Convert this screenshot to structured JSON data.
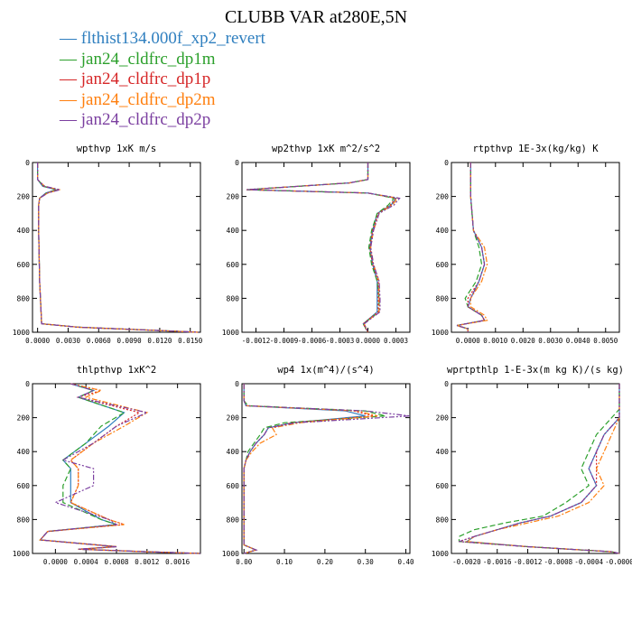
{
  "title": "CLUBB VAR at280E,5N",
  "legend": [
    {
      "label": "flthist134.000f_xp2_revert",
      "color": "#2f7fbf",
      "dash": ""
    },
    {
      "label": "jan24_cldfrc_dp1m",
      "color": "#2ca02c",
      "dash": "6,3"
    },
    {
      "label": "jan24_cldfrc_dp1p",
      "color": "#d62728",
      "dash": "2,2"
    },
    {
      "label": "jan24_cldfrc_dp2m",
      "color": "#ff7f0e",
      "dash": "6,2,2,2"
    },
    {
      "label": "jan24_cldfrc_dp2p",
      "color": "#7b3fa0",
      "dash": "6,2,2,2,2,2"
    }
  ],
  "chart_data": [
    {
      "type": "line",
      "title": "wpthvp  1xK m/s",
      "ylim": [
        1000,
        0
      ],
      "xlim": [
        -0.0005,
        0.016
      ],
      "xticks": [
        "0.0000",
        "0.0030",
        "0.0060",
        "0.0090",
        "0.0120",
        "0.0150"
      ],
      "xtick_values": [
        0,
        0.003,
        0.006,
        0.009,
        0.012,
        0.015
      ],
      "yticks": [
        "0",
        "200",
        "400",
        "600",
        "800",
        "1000"
      ],
      "ytick_values": [
        0,
        200,
        400,
        600,
        800,
        1000
      ],
      "levels": [
        0,
        100,
        140,
        160,
        180,
        210,
        250,
        400,
        700,
        950,
        970,
        990,
        1000
      ],
      "series": [
        {
          "values": [
            0,
            0,
            0.0005,
            0.0018,
            0.0008,
            0.0002,
            0.0001,
            0.0001,
            0.0002,
            0.0004,
            0.004,
            0.012,
            0.0158
          ]
        },
        {
          "values": [
            0,
            0,
            0.0006,
            0.0019,
            0.0009,
            0.0002,
            0.0001,
            0.0001,
            0.0002,
            0.0004,
            0.004,
            0.012,
            0.0158
          ]
        },
        {
          "values": [
            0,
            0,
            0.0006,
            0.002,
            0.0009,
            0.0002,
            0.0001,
            0.0001,
            0.0002,
            0.0004,
            0.004,
            0.012,
            0.0158
          ]
        },
        {
          "values": [
            0,
            0,
            0.0007,
            0.0021,
            0.001,
            0.0002,
            0.0001,
            0.0001,
            0.0002,
            0.0004,
            0.004,
            0.012,
            0.0158
          ]
        },
        {
          "values": [
            0,
            0,
            0.0007,
            0.0022,
            0.001,
            0.0002,
            0.0001,
            0.0001,
            0.0002,
            0.0004,
            0.004,
            0.012,
            0.0158
          ]
        }
      ]
    },
    {
      "type": "line",
      "title": "wp2thvp  1xK m^2/s^2",
      "ylim": [
        1000,
        0
      ],
      "xlim": [
        -0.00135,
        0.00045
      ],
      "xticks": [
        "-0.0012",
        "-0.0009",
        "-0.0006",
        "-0.0003",
        "0.0000",
        "0.0003"
      ],
      "xtick_values": [
        -0.0012,
        -0.0009,
        -0.0006,
        -0.0003,
        0,
        0.0003
      ],
      "yticks": [
        "0",
        "200",
        "400",
        "600",
        "800",
        "1000"
      ],
      "ytick_values": [
        0,
        200,
        400,
        600,
        800,
        1000
      ],
      "levels": [
        0,
        100,
        120,
        160,
        180,
        210,
        250,
        300,
        400,
        500,
        600,
        700,
        800,
        880,
        950,
        1000
      ],
      "series": [
        {
          "values": [
            0,
            0,
            -0.0002,
            -0.0013,
            0,
            0.0003,
            0.00025,
            0.0001,
            5e-05,
            2e-05,
            5e-05,
            0.0001,
            0.0001,
            0.0001,
            -5e-05,
            0
          ]
        },
        {
          "values": [
            0,
            0,
            -0.0002,
            -0.0013,
            0,
            0.00028,
            0.00022,
            0.0001,
            4e-05,
            1e-05,
            4e-05,
            0.0001,
            0.00012,
            0.00012,
            -5e-05,
            0
          ]
        },
        {
          "values": [
            0,
            0,
            -0.0002,
            -0.0013,
            0,
            0.0003,
            0.00024,
            0.00011,
            5e-05,
            2e-05,
            5e-05,
            0.00011,
            0.00011,
            0.00011,
            -5e-05,
            0
          ]
        },
        {
          "values": [
            0,
            0,
            -0.0002,
            -0.0013,
            0,
            0.00032,
            0.00026,
            0.00012,
            6e-05,
            3e-05,
            6e-05,
            0.00012,
            0.00012,
            0.00012,
            -4e-05,
            0
          ]
        },
        {
          "values": [
            0,
            0,
            -0.0002,
            -0.0013,
            0,
            0.00034,
            0.00028,
            0.00012,
            6e-05,
            3e-05,
            6e-05,
            0.00012,
            0.00013,
            0.00013,
            -4e-05,
            0
          ]
        }
      ]
    },
    {
      "type": "line",
      "title": "rtpthvp  1E-3x(kg/kg) K",
      "ylim": [
        1000,
        0
      ],
      "xlim": [
        -0.0006,
        0.0055
      ],
      "xticks": [
        "0.0000",
        "0.0010",
        "0.0020",
        "0.0030",
        "0.0040",
        "0.0050"
      ],
      "xtick_values": [
        0,
        0.001,
        0.002,
        0.003,
        0.004,
        0.005
      ],
      "yticks": [
        "0",
        "200",
        "400",
        "600",
        "800",
        "1000"
      ],
      "ytick_values": [
        0,
        200,
        400,
        600,
        800,
        1000
      ],
      "levels": [
        0,
        200,
        400,
        500,
        600,
        700,
        800,
        850,
        900,
        930,
        960,
        980,
        1000
      ],
      "series": [
        {
          "values": [
            0.0001,
            0.0001,
            0.0002,
            0.0005,
            0.0006,
            0.0004,
            0.0001,
            0,
            0.0005,
            0.0006,
            -0.0004,
            0,
            0
          ]
        },
        {
          "values": [
            0.0001,
            0.0001,
            0.0002,
            0.0004,
            0.0005,
            0.0003,
            -0.0001,
            0,
            0.0005,
            0.0006,
            -0.0004,
            0,
            0
          ]
        },
        {
          "values": [
            0.0001,
            0.0001,
            0.0002,
            0.0005,
            0.0006,
            0.0004,
            0,
            0,
            0.0005,
            0.0006,
            -0.0004,
            0,
            0
          ]
        },
        {
          "values": [
            0.0001,
            0.0001,
            0.0002,
            0.0006,
            0.0007,
            0.0005,
            0.0001,
            0.0001,
            0.0006,
            0.0007,
            -0.0004,
            0,
            0
          ]
        },
        {
          "values": [
            0.0001,
            0.0001,
            0.0002,
            0.0005,
            0.0006,
            0.0004,
            0.0001,
            0,
            0.0005,
            0.0006,
            -0.0004,
            0,
            0
          ]
        }
      ]
    },
    {
      "type": "line",
      "title": "thlpthvp  1xK^2",
      "ylim": [
        1000,
        0
      ],
      "xlim": [
        -0.0003,
        0.0019
      ],
      "xticks": [
        "0.0000",
        "0.0004",
        "0.0008",
        "0.0012",
        "0.0016"
      ],
      "xtick_values": [
        0,
        0.0004,
        0.0008,
        0.0012,
        0.0016
      ],
      "yticks": [
        "0",
        "200",
        "400",
        "600",
        "800",
        "1000"
      ],
      "ytick_values": [
        0,
        200,
        400,
        600,
        800,
        1000
      ],
      "levels": [
        0,
        40,
        80,
        170,
        250,
        350,
        450,
        500,
        600,
        700,
        800,
        830,
        870,
        920,
        960,
        975,
        990,
        1000
      ],
      "series": [
        {
          "values": [
            0.0002,
            0.0005,
            0.0003,
            0.0009,
            0.0007,
            0.0004,
            0.0001,
            0.0002,
            0.0002,
            0.0002,
            0.0006,
            0.0008,
            -0.0001,
            -0.0002,
            0.0008,
            0.0003,
            0.0012,
            0.0019
          ]
        },
        {
          "values": [
            0.0002,
            0.0005,
            0.0003,
            0.0009,
            0.0006,
            0.0004,
            0.0001,
            0.0002,
            0.0001,
            0.0001,
            0.0006,
            0.0008,
            -0.0001,
            -0.0002,
            0.0008,
            0.0003,
            0.0012,
            0.0019
          ]
        },
        {
          "values": [
            0.0002,
            0.0006,
            0.0003,
            0.0011,
            0.0008,
            0.0005,
            0.0002,
            0.0003,
            0.0003,
            0.0002,
            0.0007,
            0.0009,
            -0.0001,
            -0.0002,
            0.0008,
            0.0003,
            0.0012,
            0.0019
          ]
        },
        {
          "values": [
            0.0002,
            0.0006,
            0.0004,
            0.0012,
            0.0009,
            0.0005,
            0.0002,
            0.0003,
            0.0003,
            0.0002,
            0.0007,
            0.0009,
            -0.0001,
            -0.0002,
            0.0008,
            0.0003,
            0.0012,
            0.0019
          ]
        },
        {
          "values": [
            0.0002,
            0.0005,
            0.0003,
            0.0012,
            0.0008,
            0.0005,
            0.0001,
            0.0005,
            0.0005,
            0,
            0.0007,
            0.0008,
            -0.0001,
            -0.0002,
            0.0008,
            0.0003,
            0.0012,
            0.0019
          ]
        }
      ]
    },
    {
      "type": "line",
      "title": "wp4  1x(m^4)/(s^4)",
      "ylim": [
        1000,
        0
      ],
      "xlim": [
        -0.005,
        0.41
      ],
      "xticks": [
        "0.00",
        "0.10",
        "0.20",
        "0.30",
        "0.40"
      ],
      "xtick_values": [
        0,
        0.1,
        0.2,
        0.3,
        0.4
      ],
      "yticks": [
        "0",
        "200",
        "400",
        "600",
        "800",
        "1000"
      ],
      "ytick_values": [
        0,
        200,
        400,
        600,
        800,
        1000
      ],
      "levels": [
        0,
        100,
        130,
        160,
        190,
        230,
        260,
        300,
        350,
        400,
        450,
        500,
        950,
        980,
        1000
      ],
      "series": [
        {
          "values": [
            0,
            0,
            0.005,
            0.25,
            0.3,
            0.12,
            0.06,
            0.05,
            0.03,
            0.015,
            0.005,
            0,
            0,
            0.03,
            0
          ]
        },
        {
          "values": [
            0,
            0,
            0.01,
            0.3,
            0.35,
            0.1,
            0.05,
            0.04,
            0.025,
            0.01,
            0.005,
            0,
            0,
            0.03,
            0
          ]
        },
        {
          "values": [
            0,
            0,
            0.006,
            0.27,
            0.32,
            0.12,
            0.06,
            0.05,
            0.03,
            0.015,
            0.005,
            0,
            0,
            0.03,
            0
          ]
        },
        {
          "values": [
            0,
            0,
            0.006,
            0.28,
            0.33,
            0.14,
            0.07,
            0.08,
            0.04,
            0.02,
            0.005,
            0,
            0,
            0.03,
            0
          ]
        },
        {
          "values": [
            0,
            0,
            0.005,
            0.3,
            0.41,
            0.13,
            0.06,
            0.05,
            0.03,
            0.015,
            0.005,
            0,
            0,
            0.03,
            0
          ]
        }
      ]
    },
    {
      "type": "line",
      "title": "wprtpthlp  1-E-3x(m kg K)/(s kg)",
      "ylim": [
        1000,
        0
      ],
      "xlim": [
        -0.0022,
        0
      ],
      "xticks": [
        "-0.0020",
        "-0.0016",
        "-0.0012",
        "-0.0008",
        "-0.0004",
        "-0.0000"
      ],
      "xtick_values": [
        -0.002,
        -0.0016,
        -0.0012,
        -0.0008,
        -0.0004,
        0
      ],
      "yticks": [
        "0",
        "200",
        "400",
        "600",
        "800",
        "1000"
      ],
      "ytick_values": [
        0,
        200,
        400,
        600,
        800,
        1000
      ],
      "levels": [
        0,
        150,
        200,
        300,
        400,
        500,
        600,
        700,
        780,
        820,
        860,
        900,
        930,
        960,
        990,
        1000
      ],
      "series": [
        {
          "values": [
            0,
            0,
            0,
            -0.0002,
            -0.0003,
            -0.0004,
            -0.0003,
            -0.0005,
            -0.0009,
            -0.0013,
            -0.0016,
            -0.0019,
            -0.002,
            -0.0012,
            -0.0001,
            0
          ]
        },
        {
          "values": [
            0,
            0,
            -0.0001,
            -0.0003,
            -0.0004,
            -0.0005,
            -0.0004,
            -0.0007,
            -0.001,
            -0.0015,
            -0.0019,
            -0.0021,
            -0.0021,
            -0.0012,
            -0.0001,
            0
          ]
        },
        {
          "values": [
            0,
            0,
            0,
            -0.0002,
            -0.0003,
            -0.0003,
            -0.0003,
            -0.0005,
            -0.0009,
            -0.0013,
            -0.0016,
            -0.0019,
            -0.0021,
            -0.0012,
            -0.0001,
            0
          ]
        },
        {
          "values": [
            0,
            0,
            0,
            -0.0001,
            -0.0002,
            -0.0003,
            -0.0002,
            -0.0004,
            -0.0008,
            -0.0012,
            -0.0016,
            -0.0019,
            -0.002,
            -0.0012,
            -0.0001,
            0
          ]
        },
        {
          "values": [
            0,
            0,
            0,
            -0.0002,
            -0.0003,
            -0.0004,
            -0.0003,
            -0.0005,
            -0.0009,
            -0.0013,
            -0.0016,
            -0.0019,
            -0.0021,
            -0.0012,
            -0.0001,
            0
          ]
        }
      ]
    }
  ]
}
